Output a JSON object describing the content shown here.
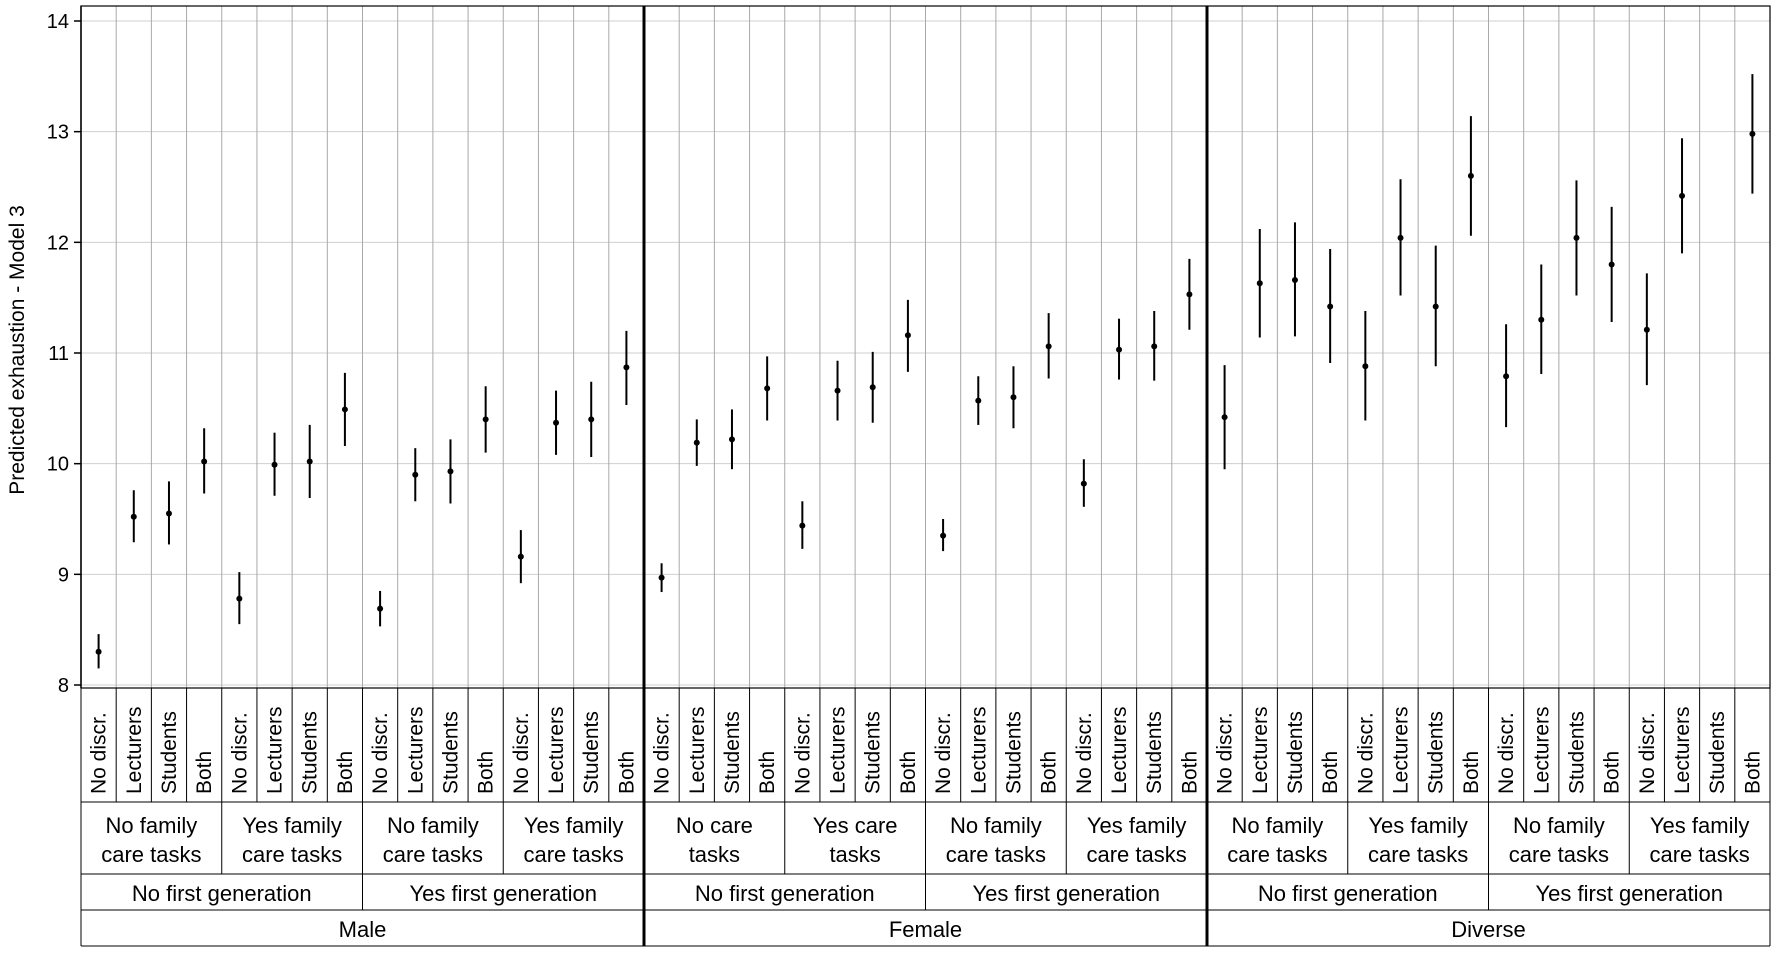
{
  "chart_data": {
    "type": "scatter",
    "subtype": "point-estimate with error bars",
    "ylabel": "Predicted exhaustion - Model 3",
    "ylim": [
      8,
      14
    ],
    "yticks": [
      8,
      9,
      10,
      11,
      12,
      13,
      14
    ],
    "grid": true,
    "color": "#000000",
    "category_levels": {
      "level1": [
        "No discr.",
        "Lecturers",
        "Students",
        "Both"
      ],
      "gender": [
        "Male",
        "Female",
        "Diverse"
      ]
    },
    "groups": [
      {
        "gender": "Male",
        "subgroups": [
          {
            "label": "No first generation",
            "care": [
              "No family care tasks",
              "Yes family care tasks"
            ]
          },
          {
            "label": "Yes first generation",
            "care": [
              "No family care tasks",
              "Yes family care tasks"
            ]
          }
        ]
      },
      {
        "gender": "Female",
        "subgroups": [
          {
            "label": "No first generation",
            "care": [
              "No care tasks",
              "Yes care tasks"
            ]
          },
          {
            "label": "Yes first generation",
            "care": [
              "No family care tasks",
              "Yes family care tasks"
            ]
          }
        ]
      },
      {
        "gender": "Diverse",
        "subgroups": [
          {
            "label": "No first generation",
            "care": [
              "No family care tasks",
              "Yes family care tasks"
            ]
          },
          {
            "label": "Yes first generation",
            "care": [
              "No family care tasks",
              "Yes family care tasks"
            ]
          }
        ]
      }
    ],
    "points": [
      {
        "y": 8.3,
        "lo": 8.15,
        "hi": 8.46
      },
      {
        "y": 9.52,
        "lo": 9.29,
        "hi": 9.76
      },
      {
        "y": 9.55,
        "lo": 9.27,
        "hi": 9.84
      },
      {
        "y": 10.02,
        "lo": 9.73,
        "hi": 10.32
      },
      {
        "y": 8.78,
        "lo": 8.55,
        "hi": 9.02
      },
      {
        "y": 9.99,
        "lo": 9.71,
        "hi": 10.28
      },
      {
        "y": 10.02,
        "lo": 9.69,
        "hi": 10.35
      },
      {
        "y": 10.49,
        "lo": 10.16,
        "hi": 10.82
      },
      {
        "y": 8.69,
        "lo": 8.53,
        "hi": 8.85
      },
      {
        "y": 9.9,
        "lo": 9.66,
        "hi": 10.14
      },
      {
        "y": 9.93,
        "lo": 9.64,
        "hi": 10.22
      },
      {
        "y": 10.4,
        "lo": 10.1,
        "hi": 10.7
      },
      {
        "y": 9.16,
        "lo": 8.92,
        "hi": 9.4
      },
      {
        "y": 10.37,
        "lo": 10.08,
        "hi": 10.66
      },
      {
        "y": 10.4,
        "lo": 10.06,
        "hi": 10.74
      },
      {
        "y": 10.87,
        "lo": 10.53,
        "hi": 11.2
      },
      {
        "y": 8.97,
        "lo": 8.84,
        "hi": 9.1
      },
      {
        "y": 10.19,
        "lo": 9.98,
        "hi": 10.4
      },
      {
        "y": 10.22,
        "lo": 9.95,
        "hi": 10.49
      },
      {
        "y": 10.68,
        "lo": 10.39,
        "hi": 10.97
      },
      {
        "y": 9.44,
        "lo": 9.23,
        "hi": 9.66
      },
      {
        "y": 10.66,
        "lo": 10.39,
        "hi": 10.93
      },
      {
        "y": 10.69,
        "lo": 10.37,
        "hi": 11.01
      },
      {
        "y": 11.16,
        "lo": 10.83,
        "hi": 11.48
      },
      {
        "y": 9.35,
        "lo": 9.21,
        "hi": 9.5
      },
      {
        "y": 10.57,
        "lo": 10.35,
        "hi": 10.79
      },
      {
        "y": 10.6,
        "lo": 10.32,
        "hi": 10.88
      },
      {
        "y": 11.06,
        "lo": 10.77,
        "hi": 11.36
      },
      {
        "y": 9.82,
        "lo": 9.61,
        "hi": 10.04
      },
      {
        "y": 11.03,
        "lo": 10.76,
        "hi": 11.31
      },
      {
        "y": 11.06,
        "lo": 10.75,
        "hi": 11.38
      },
      {
        "y": 11.53,
        "lo": 11.21,
        "hi": 11.85
      },
      {
        "y": 10.42,
        "lo": 9.95,
        "hi": 10.89
      },
      {
        "y": 11.63,
        "lo": 11.14,
        "hi": 12.12
      },
      {
        "y": 11.66,
        "lo": 11.15,
        "hi": 12.18
      },
      {
        "y": 11.42,
        "lo": 10.91,
        "hi": 11.94
      },
      {
        "y": 10.88,
        "lo": 10.39,
        "hi": 11.38
      },
      {
        "y": 12.04,
        "lo": 11.52,
        "hi": 12.57
      },
      {
        "y": 11.42,
        "lo": 10.88,
        "hi": 11.97
      },
      {
        "y": 12.6,
        "lo": 12.06,
        "hi": 13.14
      },
      {
        "y": 10.79,
        "lo": 10.33,
        "hi": 11.26
      },
      {
        "y": 11.3,
        "lo": 10.81,
        "hi": 11.8
      },
      {
        "y": 12.04,
        "lo": 11.52,
        "hi": 12.56
      },
      {
        "y": 11.8,
        "lo": 11.28,
        "hi": 12.32
      },
      {
        "y": 11.21,
        "lo": 10.71,
        "hi": 11.72
      },
      {
        "y": 12.42,
        "lo": 11.9,
        "hi": 12.94
      },
      {
        "y": null,
        "lo": null,
        "hi": null
      },
      {
        "y": 12.98,
        "lo": 12.44,
        "hi": 13.52
      }
    ]
  }
}
